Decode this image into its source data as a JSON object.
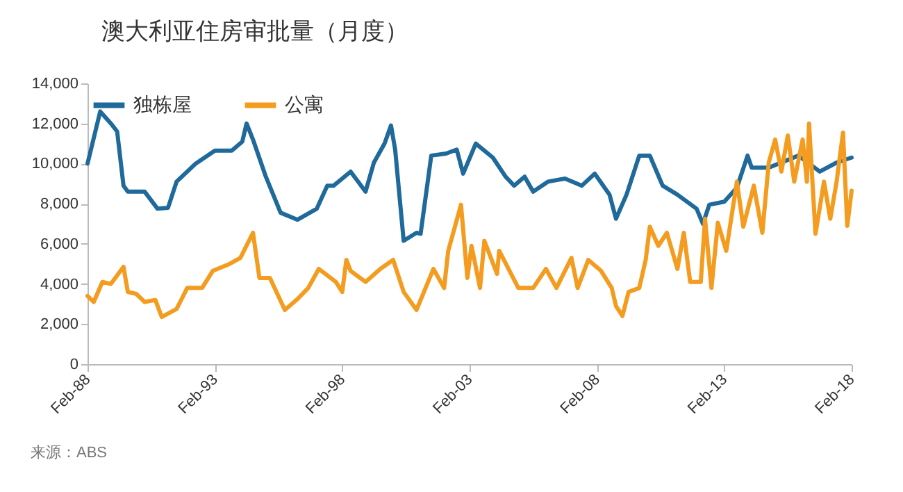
{
  "chart_data": {
    "type": "line",
    "title": "澳大利亚住房审批量（月度）",
    "annotations": [
      "来源：ABS"
    ],
    "legend": "top left",
    "grid": false,
    "xlim": [
      "1988-02",
      "2018-02"
    ],
    "xticks": [
      {
        "value": "1988-02",
        "label": "Feb-88"
      },
      {
        "value": "1993-02",
        "label": "Feb-93"
      },
      {
        "value": "1998-02",
        "label": "Feb-98"
      },
      {
        "value": "2003-02",
        "label": "Feb-03"
      },
      {
        "value": "2008-02",
        "label": "Feb-08"
      },
      {
        "value": "2013-02",
        "label": "Feb-13"
      },
      {
        "value": "2018-02",
        "label": "Feb-18"
      }
    ],
    "ylim": [
      0,
      14000
    ],
    "yticks": [
      {
        "value": 0,
        "label": "0"
      },
      {
        "value": 2000,
        "label": "2,000"
      },
      {
        "value": 4000,
        "label": "4,000"
      },
      {
        "value": 6000,
        "label": "6,000"
      },
      {
        "value": 8000,
        "label": "8,000"
      },
      {
        "value": 10000,
        "label": "10,000"
      },
      {
        "value": 12000,
        "label": "12,000"
      },
      {
        "value": 14000,
        "label": "14,000"
      }
    ],
    "series": [
      {
        "name": "独栋屋",
        "color": "#1f6a9a",
        "x": [
          "1988-02",
          "1988-08",
          "1989-01",
          "1989-04",
          "1989-07",
          "1989-09",
          "1990-05",
          "1990-11",
          "1991-04",
          "1991-08",
          "1992-05",
          "1993-02",
          "1993-10",
          "1994-03",
          "1994-05",
          "1994-08",
          "1995-02",
          "1995-09",
          "1996-05",
          "1997-02",
          "1997-07",
          "1997-10",
          "1998-06",
          "1999-01",
          "1999-05",
          "1999-10",
          "2000-01",
          "2000-03",
          "2000-07",
          "2001-01",
          "2001-03",
          "2001-08",
          "2002-03",
          "2002-08",
          "2002-11",
          "2003-05",
          "2004-01",
          "2004-07",
          "2004-11",
          "2005-04",
          "2005-08",
          "2006-03",
          "2006-11",
          "2007-07",
          "2008-01",
          "2008-08",
          "2008-11",
          "2009-04",
          "2009-10",
          "2010-03",
          "2010-09",
          "2011-04",
          "2012-01",
          "2012-04",
          "2012-07",
          "2013-02",
          "2013-08",
          "2014-01",
          "2014-03",
          "2014-11",
          "2016-01",
          "2016-11",
          "2017-07",
          "2018-02"
        ],
        "values": [
          10000,
          12600,
          12000,
          11600,
          8900,
          8600,
          8600,
          7750,
          7800,
          9100,
          10000,
          10650,
          10650,
          11100,
          12000,
          11200,
          9350,
          7550,
          7200,
          7750,
          8900,
          8900,
          9600,
          8600,
          10050,
          11000,
          11900,
          10700,
          6150,
          6550,
          6500,
          10400,
          10500,
          10700,
          9500,
          11000,
          10300,
          9350,
          8900,
          9350,
          8600,
          9100,
          9250,
          8900,
          9500,
          8450,
          7250,
          8450,
          10400,
          10400,
          8900,
          8450,
          7750,
          7000,
          7950,
          8100,
          8800,
          10400,
          9800,
          9800,
          10400,
          9600,
          10050,
          10300
        ]
      },
      {
        "name": "公寓",
        "color": "#f39c1f",
        "x": [
          "1988-02",
          "1988-05",
          "1988-09",
          "1989-01",
          "1989-07",
          "1989-09",
          "1990-01",
          "1990-05",
          "1990-10",
          "1991-01",
          "1991-08",
          "1992-01",
          "1992-08",
          "1993-01",
          "1993-09",
          "1994-02",
          "1994-08",
          "1994-11",
          "1995-04",
          "1995-11",
          "1996-05",
          "1996-10",
          "1997-03",
          "1997-11",
          "1998-02",
          "1998-04",
          "1998-06",
          "1999-01",
          "1999-08",
          "2000-02",
          "2000-07",
          "2001-01",
          "2001-09",
          "2002-02",
          "2002-04",
          "2002-10",
          "2003-01",
          "2003-03",
          "2003-07",
          "2003-09",
          "2004-03",
          "2004-04",
          "2005-01",
          "2005-08",
          "2006-02",
          "2006-07",
          "2007-02",
          "2007-05",
          "2007-10",
          "2008-04",
          "2008-09",
          "2008-11",
          "2009-02",
          "2009-05",
          "2009-10",
          "2010-01",
          "2010-03",
          "2010-07",
          "2010-11",
          "2011-04",
          "2011-07",
          "2011-10",
          "2012-03",
          "2012-05",
          "2012-08",
          "2012-11",
          "2013-03",
          "2013-08",
          "2013-11",
          "2014-04",
          "2014-08",
          "2014-11",
          "2015-02",
          "2015-05",
          "2015-08",
          "2015-11",
          "2016-03",
          "2016-05",
          "2016-06",
          "2016-09",
          "2017-01",
          "2017-04",
          "2017-07",
          "2017-10",
          "2017-12",
          "2018-02"
        ],
        "values": [
          3400,
          3100,
          4100,
          4000,
          4850,
          3600,
          3500,
          3100,
          3200,
          2350,
          2750,
          3800,
          3800,
          4650,
          5000,
          5300,
          6550,
          4300,
          4300,
          2700,
          3250,
          3800,
          4750,
          4100,
          3600,
          5200,
          4650,
          4100,
          4750,
          5200,
          3600,
          2700,
          4750,
          3800,
          5650,
          7950,
          4300,
          5900,
          3800,
          6150,
          4500,
          5650,
          3800,
          3800,
          4750,
          3800,
          5300,
          3800,
          5200,
          4650,
          3800,
          2900,
          2400,
          3600,
          3800,
          5200,
          6850,
          5900,
          6550,
          4750,
          6550,
          4100,
          4100,
          7250,
          3800,
          7050,
          5650,
          9100,
          6850,
          8900,
          6550,
          10050,
          11200,
          9600,
          11400,
          9100,
          11200,
          9100,
          12000,
          6500,
          9100,
          7250,
          9100,
          11550,
          6900,
          8650
        ]
      }
    ]
  }
}
